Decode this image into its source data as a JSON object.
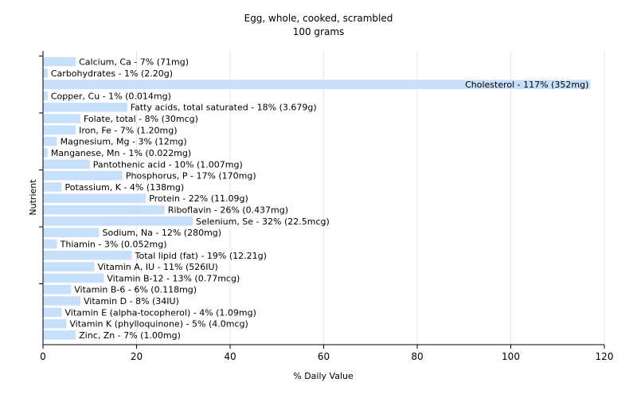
{
  "chart_data": {
    "type": "bar",
    "orientation": "horizontal",
    "title": "Egg, whole, cooked, scrambled",
    "subtitle": "100 grams",
    "xlabel": "% Daily Value",
    "ylabel": "Nutrient",
    "xlim": [
      0,
      120
    ],
    "xticks": [
      0,
      20,
      40,
      60,
      80,
      100,
      120
    ],
    "grid": true,
    "colors": {
      "bar": "#c6dffa",
      "grid": "#e6e6e6",
      "axis": "#000000"
    },
    "categories": [
      "Calcium, Ca",
      "Carbohydrates",
      "Cholesterol",
      "Copper, Cu",
      "Fatty acids, total saturated",
      "Folate, total",
      "Iron, Fe",
      "Magnesium, Mg",
      "Manganese, Mn",
      "Pantothenic acid",
      "Phosphorus, P",
      "Potassium, K",
      "Protein",
      "Riboflavin",
      "Selenium, Se",
      "Sodium, Na",
      "Thiamin",
      "Total lipid (fat)",
      "Vitamin A, IU",
      "Vitamin B-12",
      "Vitamin B-6",
      "Vitamin D",
      "Vitamin E (alpha-tocopherol)",
      "Vitamin K (phylloquinone)",
      "Zinc, Zn"
    ],
    "values": [
      7,
      1,
      117,
      1,
      18,
      8,
      7,
      3,
      1,
      10,
      17,
      4,
      22,
      26,
      32,
      12,
      3,
      19,
      11,
      13,
      6,
      8,
      4,
      5,
      7
    ],
    "labels": [
      "Calcium, Ca - 7% (71mg)",
      "Carbohydrates - 1% (2.20g)",
      "Cholesterol - 117% (352mg)",
      "Copper, Cu - 1% (0.014mg)",
      "Fatty acids, total saturated - 18% (3.679g)",
      "Folate, total - 8% (30mcg)",
      "Iron, Fe - 7% (1.20mg)",
      "Magnesium, Mg - 3% (12mg)",
      "Manganese, Mn - 1% (0.022mg)",
      "Pantothenic acid - 10% (1.007mg)",
      "Phosphorus, P - 17% (170mg)",
      "Potassium, K - 4% (138mg)",
      "Protein - 22% (11.09g)",
      "Riboflavin - 26% (0.437mg)",
      "Selenium, Se - 32% (22.5mcg)",
      "Sodium, Na - 12% (280mg)",
      "Thiamin - 3% (0.052mg)",
      "Total lipid (fat) - 19% (12.21g)",
      "Vitamin A, IU - 11% (526IU)",
      "Vitamin B-12 - 13% (0.77mcg)",
      "Vitamin B-6 - 6% (0.118mg)",
      "Vitamin D - 8% (34IU)",
      "Vitamin E (alpha-tocopherol) - 4% (1.09mg)",
      "Vitamin K (phylloquinone) - 5% (4.0mcg)",
      "Zinc, Zn - 7% (1.00mg)"
    ]
  }
}
